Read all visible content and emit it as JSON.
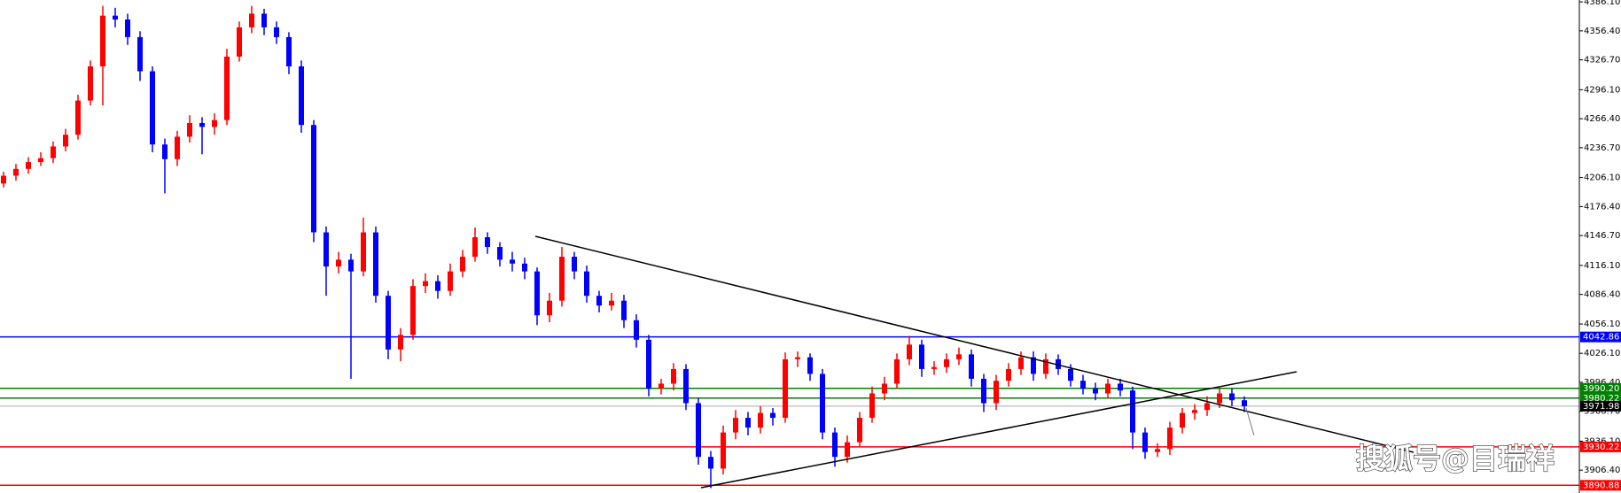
{
  "chart_data": {
    "type": "candlestick",
    "ylim": [
      3883,
      4388
    ],
    "yticks": [
      {
        "value": 4386.1,
        "label": "4386.10"
      },
      {
        "value": 4356.4,
        "label": "4356.40"
      },
      {
        "value": 4326.7,
        "label": "4326.70"
      },
      {
        "value": 4296.1,
        "label": "4296.10"
      },
      {
        "value": 4266.4,
        "label": "4266.40"
      },
      {
        "value": 4236.7,
        "label": "4236.70"
      },
      {
        "value": 4206.1,
        "label": "4206.10"
      },
      {
        "value": 4176.4,
        "label": "4176.40"
      },
      {
        "value": 4146.7,
        "label": "4146.70"
      },
      {
        "value": 4116.1,
        "label": "4116.10"
      },
      {
        "value": 4086.4,
        "label": "4086.40"
      },
      {
        "value": 4056.1,
        "label": "4056.10"
      },
      {
        "value": 4026.1,
        "label": "4026.10"
      },
      {
        "value": 3996.4,
        "label": "3996.40"
      },
      {
        "value": 3966.7,
        "label": "3966.70"
      },
      {
        "value": 3936.1,
        "label": "3936.10"
      },
      {
        "value": 3906.4,
        "label": "3906.40"
      }
    ],
    "up_color": "#ff0000",
    "down_color": "#0000ff",
    "levels": [
      {
        "value": 4042.86,
        "label": "4042.86",
        "color": "#0000ff"
      },
      {
        "value": 3990.2,
        "label": "3990.20",
        "color": "#008000"
      },
      {
        "value": 3980.22,
        "label": "3980.22",
        "color": "#008000"
      },
      {
        "value": 3971.98,
        "label": "3971.98",
        "color": "#000000"
      },
      {
        "value": 3930.22,
        "label": "3930.22",
        "color": "#ff0000"
      },
      {
        "value": 3890.88,
        "label": "3890.88",
        "color": "#ff0000"
      }
    ],
    "ohlc": [
      [
        4200,
        4212,
        4196,
        4208
      ],
      [
        4208,
        4220,
        4203,
        4215
      ],
      [
        4215,
        4227,
        4210,
        4222
      ],
      [
        4222,
        4232,
        4218,
        4226
      ],
      [
        4226,
        4243,
        4221,
        4238
      ],
      [
        4238,
        4256,
        4233,
        4250
      ],
      [
        4250,
        4291,
        4245,
        4285
      ],
      [
        4285,
        4326,
        4280,
        4320
      ],
      [
        4320,
        4382,
        4280,
        4372
      ],
      [
        4372,
        4380,
        4360,
        4368
      ],
      [
        4368,
        4374,
        4342,
        4350
      ],
      [
        4350,
        4356,
        4305,
        4315
      ],
      [
        4315,
        4320,
        4232,
        4240
      ],
      [
        4240,
        4246,
        4190,
        4225
      ],
      [
        4225,
        4254,
        4218,
        4248
      ],
      [
        4248,
        4270,
        4242,
        4262
      ],
      [
        4262,
        4268,
        4230,
        4258
      ],
      [
        4258,
        4272,
        4250,
        4265
      ],
      [
        4265,
        4338,
        4260,
        4330
      ],
      [
        4330,
        4366,
        4325,
        4360
      ],
      [
        4360,
        4382,
        4354,
        4374
      ],
      [
        4374,
        4379,
        4352,
        4360
      ],
      [
        4360,
        4366,
        4343,
        4350
      ],
      [
        4350,
        4355,
        4312,
        4320
      ],
      [
        4320,
        4326,
        4252,
        4260
      ],
      [
        4260,
        4265,
        4140,
        4150
      ],
      [
        4150,
        4156,
        4085,
        4115
      ],
      [
        4115,
        4130,
        4108,
        4122
      ],
      [
        4122,
        4128,
        4000,
        4110
      ],
      [
        4110,
        4165,
        4105,
        4150
      ],
      [
        4150,
        4156,
        4078,
        4085
      ],
      [
        4085,
        4090,
        4020,
        4030
      ],
      [
        4030,
        4052,
        4018,
        4045
      ],
      [
        4045,
        4102,
        4040,
        4095
      ],
      [
        4095,
        4108,
        4088,
        4100
      ],
      [
        4100,
        4106,
        4082,
        4090
      ],
      [
        4090,
        4118,
        4085,
        4110
      ],
      [
        4110,
        4132,
        4104,
        4125
      ],
      [
        4125,
        4155,
        4120,
        4145
      ],
      [
        4145,
        4150,
        4128,
        4135
      ],
      [
        4135,
        4140,
        4115,
        4122
      ],
      [
        4122,
        4130,
        4110,
        4118
      ],
      [
        4118,
        4124,
        4102,
        4110
      ],
      [
        4110,
        4114,
        4055,
        4065
      ],
      [
        4065,
        4088,
        4058,
        4080
      ],
      [
        4080,
        4135,
        4074,
        4125
      ],
      [
        4125,
        4130,
        4102,
        4110
      ],
      [
        4110,
        4116,
        4078,
        4085
      ],
      [
        4085,
        4090,
        4068,
        4075
      ],
      [
        4075,
        4088,
        4070,
        4080
      ],
      [
        4080,
        4086,
        4052,
        4060
      ],
      [
        4060,
        4066,
        4032,
        4040
      ],
      [
        4040,
        4045,
        3982,
        3990
      ],
      [
        3990,
        4000,
        3984,
        3995
      ],
      [
        3995,
        4016,
        3988,
        4010
      ],
      [
        4010,
        4015,
        3968,
        3975
      ],
      [
        3975,
        3980,
        3912,
        3920
      ],
      [
        3920,
        3926,
        3888,
        3908
      ],
      [
        3908,
        3952,
        3902,
        3945
      ],
      [
        3945,
        3968,
        3938,
        3960
      ],
      [
        3960,
        3966,
        3942,
        3950
      ],
      [
        3950,
        3972,
        3944,
        3965
      ],
      [
        3965,
        3970,
        3952,
        3960
      ],
      [
        3960,
        4027,
        3955,
        4020
      ],
      [
        4020,
        4028,
        4012,
        4022
      ],
      [
        4022,
        4026,
        3998,
        4005
      ],
      [
        4005,
        4010,
        3938,
        3945
      ],
      [
        3945,
        3950,
        3910,
        3920
      ],
      [
        3920,
        3942,
        3914,
        3935
      ],
      [
        3935,
        3966,
        3930,
        3960
      ],
      [
        3960,
        3992,
        3955,
        3985
      ],
      [
        3985,
        4002,
        3978,
        3995
      ],
      [
        3995,
        4026,
        3990,
        4020
      ],
      [
        4020,
        4044,
        4014,
        4035
      ],
      [
        4035,
        4040,
        4002,
        4010
      ],
      [
        4010,
        4018,
        4004,
        4012
      ],
      [
        4012,
        4026,
        4006,
        4020
      ],
      [
        4020,
        4032,
        4014,
        4025
      ],
      [
        4025,
        4030,
        3992,
        4000
      ],
      [
        4000,
        4005,
        3966,
        3975
      ],
      [
        3975,
        4004,
        3968,
        3998
      ],
      [
        3998,
        4016,
        3992,
        4010
      ],
      [
        4010,
        4028,
        4004,
        4022
      ],
      [
        4022,
        4028,
        3998,
        4005
      ],
      [
        4005,
        4026,
        4000,
        4020
      ],
      [
        4020,
        4025,
        4004,
        4010
      ],
      [
        4010,
        4015,
        3992,
        3998
      ],
      [
        3998,
        4004,
        3984,
        3990
      ],
      [
        3990,
        3996,
        3978,
        3985
      ],
      [
        3985,
        4000,
        3980,
        3995
      ],
      [
        3995,
        4000,
        3982,
        3988
      ],
      [
        3988,
        3992,
        3928,
        3945
      ],
      [
        3945,
        3950,
        3918,
        3925
      ],
      [
        3925,
        3934,
        3920,
        3928
      ],
      [
        3928,
        3956,
        3922,
        3950
      ],
      [
        3950,
        3970,
        3944,
        3965
      ],
      [
        3965,
        3974,
        3958,
        3968
      ],
      [
        3968,
        3982,
        3962,
        3975
      ],
      [
        3975,
        3990,
        3970,
        3985
      ],
      [
        3985,
        3990,
        3972,
        3978
      ],
      [
        3978,
        3982,
        3966,
        3971.98
      ]
    ],
    "watermark": "搜狐号@目瑞祥"
  }
}
